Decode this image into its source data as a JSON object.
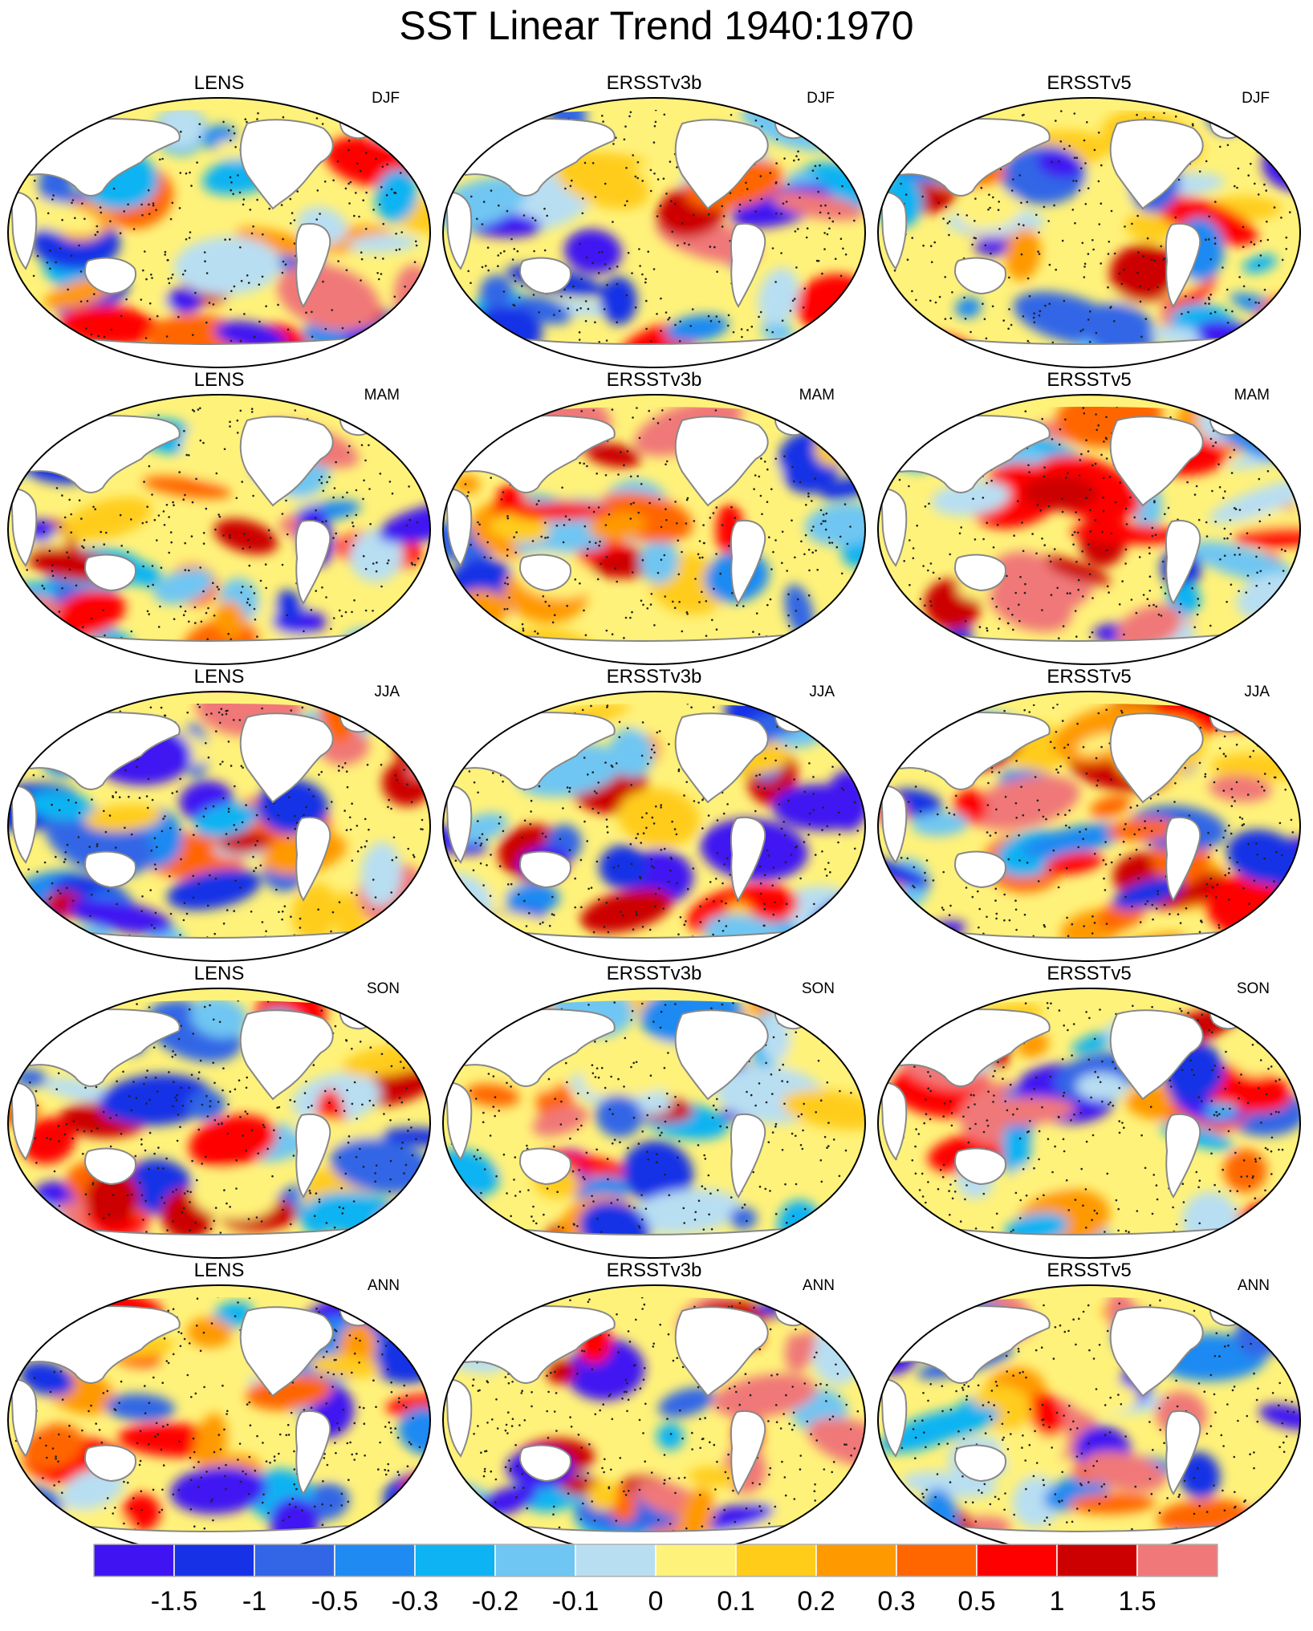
{
  "title": "SST Linear Trend 1940:1970",
  "columns": [
    "LENS",
    "ERSSTv3b",
    "ERSSTv5"
  ],
  "seasons": [
    "DJF",
    "MAM",
    "JJA",
    "SON",
    "ANN"
  ],
  "colors": {
    "land": "#ffffff",
    "coastline": "#888888",
    "stipple": "#222222",
    "outline": "#000000"
  },
  "colorbar": {
    "labels": [
      "-1.5",
      "-1",
      "-0.5",
      "-0.3",
      "-0.2",
      "-0.1",
      "0",
      "0.1",
      "0.2",
      "0.3",
      "0.5",
      "1",
      "1.5"
    ],
    "colors": [
      "#4013f2",
      "#1732e6",
      "#3366e6",
      "#1f8af2",
      "#0db3f2",
      "#6fc6f2",
      "#b8def2",
      "#fff27a",
      "#ffcc1a",
      "#ff9900",
      "#ff6600",
      "#ff0000",
      "#cc0000",
      "#f07878"
    ]
  }
}
